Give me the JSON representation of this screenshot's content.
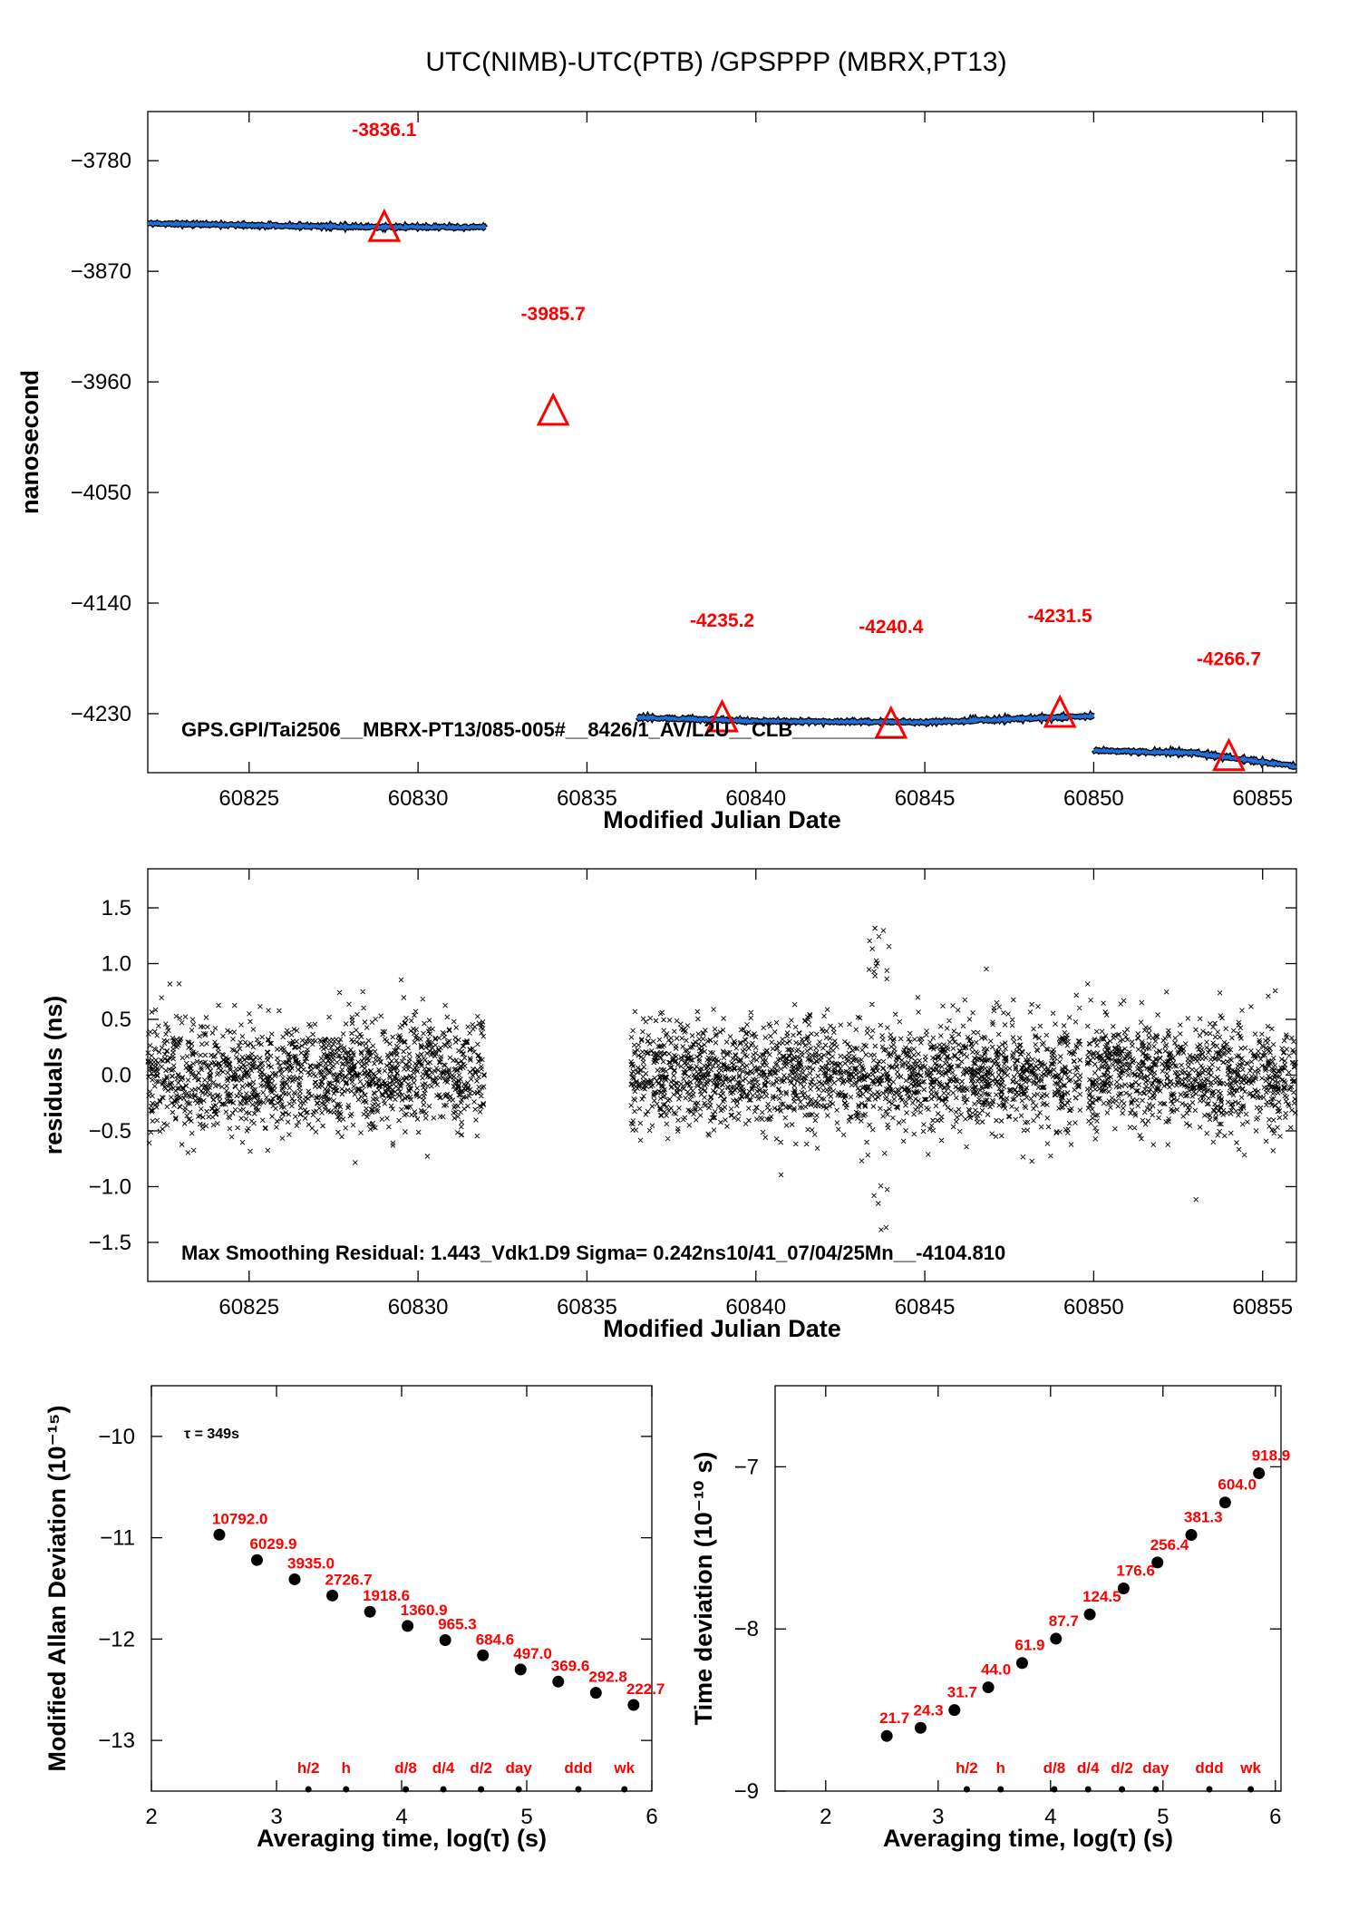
{
  "title": "UTC(NIMB)-UTC(PTB)  /GPSPPP  (MBRX,PT13)",
  "chart_data": [
    {
      "type": "line",
      "panel": "top",
      "xlabel": "Modified Julian Date",
      "ylabel": "nanosecond",
      "xlim": [
        60822,
        60856
      ],
      "ylim": [
        -4278,
        -3740
      ],
      "xticks": [
        60825,
        60830,
        60835,
        60840,
        60845,
        60850,
        60855
      ],
      "xtick_labels": [
        "60825",
        "60830",
        "60835",
        "60840",
        "60845",
        "60850",
        "60855"
      ],
      "yticks": [
        -3780,
        -3870,
        -3960,
        -4050,
        -4140,
        -4230
      ],
      "ytick_labels": [
        "−3780",
        "−3870",
        "−3960",
        "−4050",
        "−4140",
        "−4230"
      ],
      "annotation": "GPS.GPI/Tai2506__MBRX-PT13/085-005#__8426/1_AV/L2U__CLB__________",
      "series": [
        {
          "color": "#1f6fd6",
          "segments": [
            {
              "x": [
                60822,
                60826,
                60829,
                60832
              ],
              "y": [
                -3831,
                -3833,
                -3834,
                -3834
              ]
            },
            {
              "x": [
                60836.5,
                60840,
                60845,
                60850
              ],
              "y": [
                -4233,
                -4236,
                -4237,
                -4232
              ]
            },
            {
              "x": [
                60850,
                60853,
                60856
              ],
              "y": [
                -4260,
                -4262,
                -4273
              ]
            }
          ]
        }
      ],
      "markers": {
        "shape": "triangle-open",
        "color": "#ff0000",
        "x": [
          60829,
          60834,
          60839,
          60844,
          60849,
          60854
        ],
        "y": [
          -3836.1,
          -3985.7,
          -4235.2,
          -4240.4,
          -4231.5,
          -4266.7
        ],
        "labels": [
          "-3836.1",
          "-3985.7",
          "-4235.2",
          "-4240.4",
          "-4231.5",
          "-4266.7"
        ]
      }
    },
    {
      "type": "scatter",
      "panel": "middle",
      "xlabel": "Modified Julian Date",
      "ylabel": "residuals (ns)",
      "xlim": [
        60822,
        60856
      ],
      "ylim": [
        -1.85,
        1.85
      ],
      "xticks": [
        60825,
        60830,
        60835,
        60840,
        60845,
        60850,
        60855
      ],
      "xtick_labels": [
        "60825",
        "60830",
        "60835",
        "60840",
        "60845",
        "60850",
        "60855"
      ],
      "yticks": [
        1.5,
        1.0,
        0.5,
        0.0,
        -0.5,
        -1.0,
        -1.5
      ],
      "ytick_labels": [
        "1.5",
        "1.0",
        "0.5",
        "0.0",
        "−0.5",
        "−1.0",
        "−1.5"
      ],
      "marker": "x",
      "segments": [
        [
          60822,
          60832
        ],
        [
          60836.3,
          60849.6
        ],
        [
          60849.8,
          60856
        ]
      ],
      "sigma": 0.242,
      "max": 1.443,
      "annotation": "Max Smoothing Residual: 1.443_Vdk1.D9  Sigma= 0.242ns10/41_07/04/25Mn__-4104.810"
    },
    {
      "type": "scatter",
      "panel": "bottom-left",
      "xlabel": "Averaging time, log(τ) (s)",
      "ylabel": "Modified Allan Deviation (10⁻¹⁵)",
      "xlim": [
        2,
        6
      ],
      "ylim": [
        -13.5,
        -9.5
      ],
      "xticks": [
        2,
        3,
        4,
        5,
        6
      ],
      "xtick_labels": [
        "2",
        "3",
        "4",
        "5",
        "6"
      ],
      "yticks": [
        -10,
        -11,
        -12,
        -13
      ],
      "ytick_labels": [
        "−10",
        "−11",
        "−12",
        "−13"
      ],
      "tau_label": "τ = 349s",
      "x": [
        2.543,
        2.844,
        3.145,
        3.446,
        3.747,
        4.048,
        4.349,
        4.65,
        4.951,
        5.252,
        5.553,
        5.854
      ],
      "y": [
        -10.97,
        -11.22,
        -11.41,
        -11.57,
        -11.73,
        -11.87,
        -12.01,
        -12.16,
        -12.3,
        -12.42,
        -12.53,
        -12.65
      ],
      "labels": [
        "10792.0",
        "6029.9",
        "3935.0",
        "2726.7",
        "1918.6",
        "1360.9",
        "965.3",
        "684.6",
        "497.0",
        "369.6",
        "292.8",
        "222.7"
      ],
      "period_marks": {
        "x": [
          3.255,
          3.556,
          4.033,
          4.334,
          4.635,
          4.936,
          5.413,
          5.781
        ],
        "labels": [
          "h/2",
          "h",
          "d/8",
          "d/4",
          "d/2",
          "day",
          "ddd",
          "wk"
        ]
      }
    },
    {
      "type": "scatter",
      "panel": "bottom-right",
      "xlabel": "Averaging time, log(τ) (s)",
      "ylabel": "Time deviation (10⁻¹⁰ s)",
      "xlim": [
        1.55,
        6.05
      ],
      "ylim": [
        -9,
        -6.5
      ],
      "xticks": [
        2,
        3,
        4,
        5,
        6
      ],
      "xtick_labels": [
        "2",
        "3",
        "4",
        "5",
        "6"
      ],
      "yticks": [
        -7,
        -8,
        -9
      ],
      "ytick_labels": [
        "−7",
        "−8",
        "−9"
      ],
      "x": [
        2.543,
        2.844,
        3.145,
        3.446,
        3.747,
        4.048,
        4.349,
        4.65,
        4.951,
        5.252,
        5.553,
        5.854
      ],
      "y": [
        -8.66,
        -8.61,
        -8.5,
        -8.36,
        -8.21,
        -8.06,
        -7.91,
        -7.75,
        -7.59,
        -7.42,
        -7.22,
        -7.04
      ],
      "labels": [
        "21.7",
        "24.3",
        "31.7",
        "44.0",
        "61.9",
        "87.7",
        "124.5",
        "176.6",
        "256.4",
        "381.3",
        "604.0",
        "918.9"
      ],
      "period_marks": {
        "x": [
          3.255,
          3.556,
          4.033,
          4.334,
          4.635,
          4.936,
          5.413,
          5.781
        ],
        "labels": [
          "h/2",
          "h",
          "d/8",
          "d/4",
          "d/2",
          "day",
          "ddd",
          "wk"
        ]
      }
    }
  ]
}
